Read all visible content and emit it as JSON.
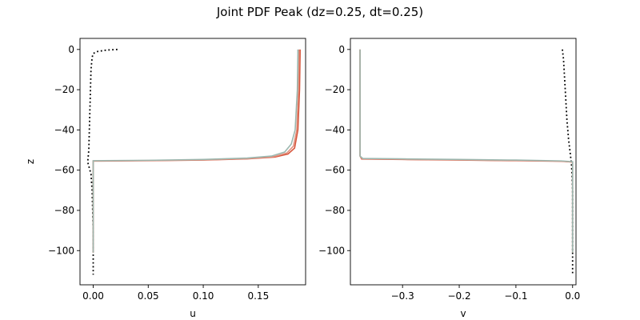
{
  "figure": {
    "title": "Joint PDF Peak (dz=0.25, dt=0.25)"
  },
  "chart_data": [
    {
      "type": "line",
      "xlabel": "u",
      "ylabel": "z",
      "xlim": [
        -0.012,
        0.193
      ],
      "ylim": [
        -117,
        5.5
      ],
      "xticks": [
        0.0,
        0.05,
        0.1,
        0.15
      ],
      "xtick_labels": [
        "0.00",
        "0.05",
        "0.10",
        "0.15"
      ],
      "yticks": [
        0,
        -20,
        -40,
        -60,
        -80,
        -100
      ],
      "ytick_labels": [
        "0",
        "−20",
        "−40",
        "−60",
        "−80",
        "−100"
      ],
      "grid": false,
      "series": [
        {
          "color": "#000000",
          "style": "dotted",
          "points": [
            [
              0.022,
              0
            ],
            [
              0.012,
              -0.3
            ],
            [
              0.004,
              -1
            ],
            [
              0.0,
              -2
            ],
            [
              -0.001,
              -4
            ],
            [
              -0.002,
              -10
            ],
            [
              -0.003,
              -30
            ],
            [
              -0.004,
              -50
            ],
            [
              -0.005,
              -56
            ],
            [
              -0.004,
              -58
            ],
            [
              -0.002,
              -62
            ],
            [
              -0.001,
              -70
            ],
            [
              0.0,
              -90
            ],
            [
              0.0,
              -112
            ]
          ]
        },
        {
          "color": "#d7553b",
          "style": "solid",
          "points": [
            [
              0.0,
              -101
            ],
            [
              0.0,
              -56
            ],
            [
              0.0,
              -55.5
            ],
            [
              0.05,
              -55.3
            ],
            [
              0.1,
              -55.0
            ],
            [
              0.14,
              -54.4
            ],
            [
              0.165,
              -53.5
            ],
            [
              0.177,
              -52
            ],
            [
              0.183,
              -49
            ],
            [
              0.186,
              -40
            ],
            [
              0.1875,
              -20
            ],
            [
              0.188,
              -2
            ],
            [
              0.188,
              0
            ]
          ]
        },
        {
          "color": "#e0907e",
          "style": "solid",
          "points": [
            [
              0.0,
              -101
            ],
            [
              0.0,
              -56
            ],
            [
              0.0,
              -55.4
            ],
            [
              0.05,
              -55.2
            ],
            [
              0.1,
              -54.9
            ],
            [
              0.14,
              -54.3
            ],
            [
              0.164,
              -53.3
            ],
            [
              0.176,
              -51.5
            ],
            [
              0.182,
              -48
            ],
            [
              0.185,
              -40
            ],
            [
              0.1865,
              -20
            ],
            [
              0.187,
              -2
            ],
            [
              0.187,
              0
            ]
          ]
        },
        {
          "color": "#9cb8b0",
          "style": "solid",
          "points": [
            [
              0.0,
              -101
            ],
            [
              0.0,
              -56
            ],
            [
              0.0,
              -55.3
            ],
            [
              0.05,
              -55.1
            ],
            [
              0.1,
              -54.7
            ],
            [
              0.14,
              -54.0
            ],
            [
              0.162,
              -53.0
            ],
            [
              0.174,
              -51
            ],
            [
              0.18,
              -47
            ],
            [
              0.1835,
              -40
            ],
            [
              0.1855,
              -20
            ],
            [
              0.186,
              -2
            ],
            [
              0.186,
              0
            ]
          ]
        }
      ]
    },
    {
      "type": "line",
      "xlabel": "v",
      "ylabel": "",
      "xlim": [
        -0.392,
        0.006
      ],
      "ylim": [
        -117,
        5.5
      ],
      "xticks": [
        -0.3,
        -0.2,
        -0.1,
        0.0
      ],
      "xtick_labels": [
        "−0.3",
        "−0.2",
        "−0.1",
        "0.0"
      ],
      "yticks": [
        0,
        -20,
        -40,
        -60,
        -80,
        -100
      ],
      "ytick_labels": [
        "0",
        "−20",
        "−40",
        "−60",
        "−80",
        "−100"
      ],
      "grid": false,
      "series": [
        {
          "color": "#000000",
          "style": "dotted",
          "points": [
            [
              -0.018,
              0
            ],
            [
              -0.016,
              -5
            ],
            [
              -0.014,
              -15
            ],
            [
              -0.012,
              -25
            ],
            [
              -0.01,
              -35
            ],
            [
              -0.007,
              -45
            ],
            [
              -0.004,
              -52
            ],
            [
              -0.002,
              -57
            ],
            [
              -0.001,
              -62
            ],
            [
              0.0,
              -70
            ],
            [
              0.0,
              -90
            ],
            [
              0.0,
              -112
            ]
          ]
        },
        {
          "color": "#d7553b",
          "style": "solid",
          "points": [
            [
              -0.375,
              0
            ],
            [
              -0.375,
              -53
            ],
            [
              -0.372,
              -54.5
            ],
            [
              -0.3,
              -54.7
            ],
            [
              -0.2,
              -55.0
            ],
            [
              -0.1,
              -55.3
            ],
            [
              -0.02,
              -55.6
            ],
            [
              0.0,
              -56
            ],
            [
              0.0,
              -101
            ]
          ]
        },
        {
          "color": "#e0907e",
          "style": "solid",
          "points": [
            [
              -0.375,
              0
            ],
            [
              -0.375,
              -53
            ],
            [
              -0.371,
              -54.4
            ],
            [
              -0.3,
              -54.6
            ],
            [
              -0.2,
              -54.9
            ],
            [
              -0.1,
              -55.2
            ],
            [
              -0.02,
              -55.5
            ],
            [
              0.0,
              -56
            ],
            [
              0.0,
              -101
            ]
          ]
        },
        {
          "color": "#9cb8b0",
          "style": "solid",
          "points": [
            [
              -0.375,
              0
            ],
            [
              -0.375,
              -53
            ],
            [
              -0.37,
              -54.2
            ],
            [
              -0.3,
              -54.4
            ],
            [
              -0.2,
              -54.7
            ],
            [
              -0.1,
              -55.0
            ],
            [
              -0.02,
              -55.4
            ],
            [
              0.0,
              -55.8
            ],
            [
              0.0,
              -101
            ]
          ]
        }
      ]
    }
  ]
}
